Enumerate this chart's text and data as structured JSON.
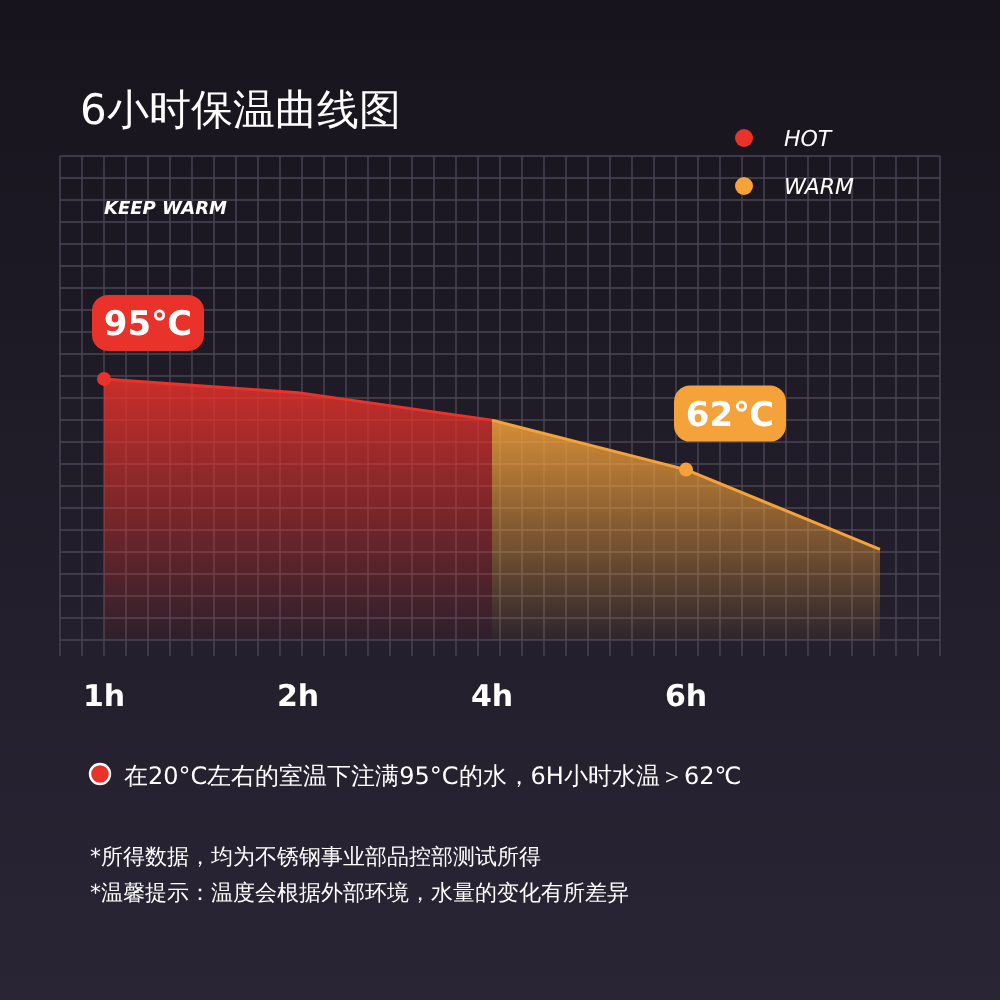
{
  "chart_data": {
    "type": "area",
    "title": "6小时保温曲线图",
    "categories": [
      "1h",
      "2h",
      "4h",
      "6h",
      null
    ],
    "series": [
      {
        "name": "HOT",
        "color": "#e8322a",
        "values": [
          95,
          90,
          80,
          null,
          null
        ],
        "value_labels": [
          "95℃",
          null,
          null,
          null,
          null
        ]
      },
      {
        "name": "WARM",
        "color": "#f5a23a",
        "values": [
          null,
          null,
          80,
          62,
          33
        ],
        "value_labels": [
          null,
          null,
          null,
          "62℃",
          null
        ]
      }
    ],
    "grid": true,
    "legend": "top right",
    "annotations": [
      "KEEP WARM",
      "在20°C左右的室温下注满95°C的水，6H小时水温＞62℃",
      "*所得数据，均为不锈钢事业部品控部测试所得",
      "*温馨提示：温度会根据外部环境，水量的变化有所差异"
    ]
  }
}
